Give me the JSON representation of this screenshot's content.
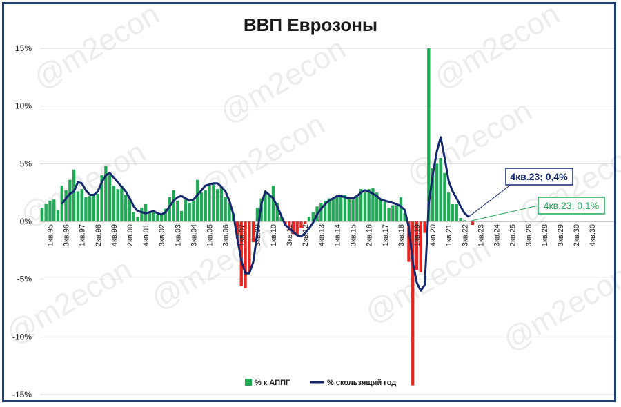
{
  "watermark": "@m2econ",
  "chart_data": {
    "type": "bar",
    "title": "ВВП Еврозоны",
    "ylim": [
      -15,
      15
    ],
    "yticks": [
      15,
      10,
      5,
      0,
      -5,
      -10,
      -15
    ],
    "ytick_labels": [
      "15%",
      "10%",
      "5%",
      "0%",
      "-5%",
      "-10%",
      "-15%"
    ],
    "grid": true,
    "legend_position": "bottom",
    "x_labels": [
      "1кв.95",
      "3кв.96",
      "1кв.97",
      "2кв.98",
      "4кв.99",
      "2кв.00",
      "4кв.01",
      "3кв.02",
      "1кв.03",
      "3кв.04",
      "1кв.05",
      "3кв.06",
      "1кв.07",
      "3кв.08",
      "1кв.10",
      "3кв.11",
      "2кв.12",
      "4кв.13",
      "1кв.14",
      "3кв.15",
      "2кв.16",
      "1кв.17",
      "3кв.18",
      "1кв.19",
      "4кв.20",
      "1кв.21",
      "3кв.22",
      "1кв.23",
      "3кв.24",
      "2кв.25",
      "3кв.26",
      "1кв.28",
      "3кв.29",
      "2кв.30",
      "4кв.30"
    ],
    "n_quarters": 144,
    "bar_series": {
      "name": "% к АППГ",
      "color_positive": "#1faa55",
      "color_negative": "#e8251f",
      "values": [
        1.2,
        1.5,
        1.8,
        1.9,
        1.0,
        3.1,
        2.7,
        3.6,
        4.5,
        2.6,
        2.8,
        2.1,
        2.2,
        2.4,
        2.4,
        4.0,
        4.8,
        4.2,
        3.1,
        2.8,
        3.1,
        2.3,
        1.9,
        0.8,
        0.4,
        1.2,
        1.5,
        0.8,
        0.9,
        0.6,
        0.7,
        1.1,
        2.1,
        2.7,
        1.8,
        0.9,
        1.9,
        1.6,
        1.8,
        3.6,
        2.5,
        2.7,
        3.1,
        3.2,
        2.8,
        3.0,
        2.1,
        1.6,
        0.7,
        -1.5,
        -5.6,
        -5.8,
        -4.4,
        -1.8,
        1.2,
        2.0,
        2.6,
        2.3,
        3.1,
        1.6,
        0.4,
        -0.3,
        -0.8,
        -1.1,
        -1.2,
        -0.6,
        -0.2,
        0.4,
        0.8,
        1.3,
        1.6,
        1.8,
        2.0,
        2.0,
        2.1,
        2.3,
        2.3,
        2.1,
        1.9,
        2.1,
        2.8,
        2.5,
        2.8,
        2.9,
        2.5,
        2.0,
        1.7,
        1.2,
        1.4,
        1.4,
        2.1,
        0.7,
        -3.5,
        -14.2,
        -4.2,
        -4.4,
        -1.0,
        15.0,
        4.6,
        5.0,
        5.5,
        4.2,
        2.5,
        1.5,
        1.5,
        0.3,
        0.1,
        0.0,
        -0.3,
        0,
        0,
        0,
        0,
        0,
        0,
        0,
        0,
        0,
        0,
        0,
        0,
        0,
        0,
        0,
        0,
        0,
        0,
        0,
        0,
        0,
        0,
        0,
        0,
        0,
        0,
        0,
        0,
        0,
        0,
        0,
        0,
        0,
        0,
        0,
        0,
        0,
        0
      ]
    },
    "line_series": {
      "name": "% скользящий год",
      "color": "#14286e",
      "values": [
        null,
        null,
        null,
        null,
        null,
        1.5,
        2.0,
        2.4,
        2.6,
        3.4,
        3.3,
        2.7,
        2.3,
        2.3,
        2.6,
        3.4,
        4.0,
        4.2,
        3.8,
        3.4,
        3.0,
        2.6,
        2.0,
        1.3,
        0.9,
        0.8,
        0.7,
        0.8,
        0.9,
        0.7,
        0.6,
        0.8,
        1.3,
        1.8,
        2.1,
        2.2,
        2.0,
        1.8,
        1.9,
        2.3,
        2.7,
        3.1,
        3.2,
        3.3,
        3.3,
        3.0,
        2.6,
        1.8,
        0.6,
        -1.5,
        -3.4,
        -4.5,
        -4.5,
        -3.5,
        -1.0,
        1.5,
        2.6,
        2.3,
        2.0,
        1.3,
        0.5,
        -0.3,
        -0.6,
        -0.9,
        -1.2,
        -1.3,
        -1.0,
        -0.6,
        -0.1,
        0.6,
        1.1,
        1.5,
        1.8,
        2.0,
        2.2,
        2.2,
        2.1,
        2.0,
        2.0,
        2.2,
        2.5,
        2.7,
        2.6,
        2.4,
        2.2,
        1.9,
        1.8,
        1.7,
        1.6,
        1.5,
        1.3,
        1.0,
        -0.5,
        -3.5,
        -5.3,
        -6.0,
        -5.5,
        1.5,
        4.0,
        6.0,
        7.3,
        5.5,
        3.5,
        2.6,
        2.0,
        1.3,
        0.7,
        0.4,
        null,
        null,
        null,
        null,
        null,
        null,
        null,
        null,
        null,
        null,
        null,
        null,
        null,
        null,
        null,
        null,
        null,
        null,
        null,
        null,
        null,
        null,
        null,
        null,
        null,
        null,
        null,
        null,
        null,
        null,
        null,
        null,
        null,
        null,
        null,
        null,
        null,
        null
      ]
    },
    "annotations": [
      {
        "text": "4кв.23; 0,4%",
        "series": "line",
        "color": "#14286e"
      },
      {
        "text": "4кв.23; 0,1%",
        "series": "bar",
        "color": "#1faa55"
      }
    ]
  }
}
